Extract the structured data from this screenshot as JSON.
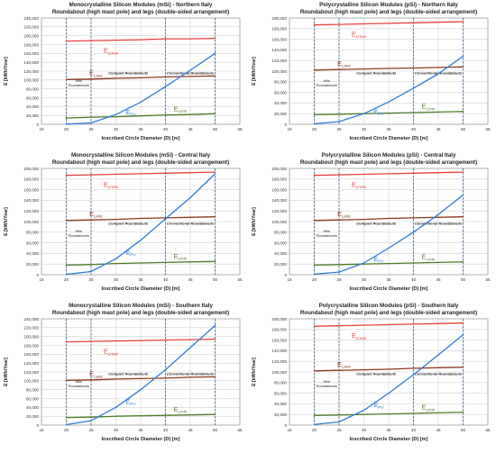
{
  "figure": {
    "common": {
      "xlabel": "Inscribed Circle Diameter (D) [m]",
      "ylabel": "E [kWh/Year]",
      "region_labels": {
        "mini": [
          "Mini",
          "Roundabouts"
        ],
        "compact": "Compact Roundabouts",
        "conventional": "Conventional Roundabouts"
      },
      "series_labels": {
        "lmax": {
          "main": "E",
          "sub": "Lmax"
        },
        "lave": {
          "main": "E",
          "sub": "Lave"
        },
        "lmin": {
          "main": "E",
          "sub": "Lmin"
        },
        "pv": {
          "main": "E",
          "sub": "PV"
        }
      },
      "colors": {
        "lmax": "#e8403a",
        "lave": "#8b3a1e",
        "lmin": "#4e7a2a",
        "pv": "#2f7bd6",
        "grid": "#d0d0d0",
        "divider": "#3a5a8a"
      }
    }
  },
  "chart_data": [
    {
      "type": "line",
      "title": [
        "Monocrystalline Silicon Modules (mSi) - Northern Italy",
        "Roundabout (high mast pole) and legs (double-sided arrangement)"
      ],
      "xlabel": "Inscribed Circle Diameter (D) [m]",
      "ylabel": "E [kWh/Year]",
      "xlim": [
        15,
        55
      ],
      "xticks": [
        15,
        20,
        25,
        30,
        35,
        40,
        45,
        50,
        55
      ],
      "ylim": [
        0,
        240000
      ],
      "yticks": [
        "0",
        "20,000",
        "40,000",
        "60,000",
        "80,000",
        "100,000",
        "120,000",
        "140,000",
        "160,000",
        "180,000",
        "200,000",
        "220,000",
        "240,000"
      ],
      "dividers": [
        25,
        40
      ],
      "series": [
        {
          "key": "lmax",
          "x": [
            20,
            25,
            30,
            35,
            40,
            45,
            50
          ],
          "values": [
            188000,
            189000,
            190000,
            191000,
            193000,
            193000,
            194000
          ]
        },
        {
          "key": "lave",
          "x": [
            20,
            25,
            30,
            35,
            40,
            45,
            50
          ],
          "values": [
            101000,
            102000,
            104000,
            105000,
            107000,
            108000,
            109000
          ]
        },
        {
          "key": "lmin",
          "x": [
            20,
            25,
            30,
            35,
            40,
            45,
            50
          ],
          "values": [
            14000,
            16000,
            17000,
            19000,
            21000,
            22000,
            24000
          ]
        },
        {
          "key": "pv",
          "x": [
            20,
            25,
            30,
            35,
            40,
            45,
            50
          ],
          "values": [
            500,
            3000,
            22000,
            50000,
            85000,
            122000,
            160000
          ]
        }
      ]
    },
    {
      "type": "line",
      "title": [
        "Polycrystalline Silicon Modules (pSi) - Northern Italy",
        "Roundabout (high mast pole) and legs (double-sided arrangement)"
      ],
      "xlabel": "Inscribed Circle Diameter (D) [m]",
      "ylabel": "E [kWh/Year]",
      "xlim": [
        15,
        55
      ],
      "xticks": [
        15,
        20,
        25,
        30,
        35,
        40,
        45,
        50,
        55
      ],
      "ylim": [
        0,
        200000
      ],
      "yticks": [
        "0",
        "20,000",
        "40,000",
        "60,000",
        "80,000",
        "100,000",
        "120,000",
        "140,000",
        "160,000",
        "180,000",
        "200,000"
      ],
      "dividers": [
        25,
        40
      ],
      "series": [
        {
          "key": "lmax",
          "x": [
            20,
            25,
            30,
            35,
            40,
            45,
            50
          ],
          "values": [
            187000,
            188000,
            189000,
            190000,
            191000,
            192000,
            193000
          ]
        },
        {
          "key": "lave",
          "x": [
            20,
            25,
            30,
            35,
            40,
            45,
            50
          ],
          "values": [
            102000,
            103000,
            104000,
            105000,
            106000,
            107000,
            108000
          ]
        },
        {
          "key": "lmin",
          "x": [
            20,
            25,
            30,
            35,
            40,
            45,
            50
          ],
          "values": [
            18000,
            19000,
            20000,
            21000,
            22000,
            23000,
            24000
          ]
        },
        {
          "key": "pv",
          "x": [
            20,
            25,
            30,
            35,
            40,
            45,
            50
          ],
          "values": [
            1000,
            5000,
            20000,
            42000,
            68000,
            95000,
            128000
          ]
        }
      ]
    },
    {
      "type": "line",
      "title": [
        "Monocrystalline Silicon Modules (mSi) - Central Italy",
        "Roundabout (high mast pole) and legs (double-sided arrangement)"
      ],
      "xlabel": "Inscribed Circle Diameter (D) [m]",
      "ylabel": "E [kWh/Year]",
      "xlim": [
        15,
        55
      ],
      "xticks": [
        15,
        20,
        25,
        30,
        35,
        40,
        45,
        50,
        55
      ],
      "ylim": [
        0,
        200000
      ],
      "yticks": [
        "0",
        "20,000",
        "40,000",
        "60,000",
        "80,000",
        "100,000",
        "120,000",
        "140,000",
        "160,000",
        "180,000",
        "200,000"
      ],
      "dividers": [
        25,
        40
      ],
      "series": [
        {
          "key": "lmax",
          "x": [
            20,
            25,
            30,
            35,
            40,
            45,
            50
          ],
          "values": [
            187000,
            188000,
            189000,
            190000,
            191000,
            192000,
            193000
          ]
        },
        {
          "key": "lave",
          "x": [
            20,
            25,
            30,
            35,
            40,
            45,
            50
          ],
          "values": [
            102000,
            103000,
            104000,
            106000,
            107000,
            108000,
            109000
          ]
        },
        {
          "key": "lmin",
          "x": [
            20,
            25,
            30,
            35,
            40,
            45,
            50
          ],
          "values": [
            18000,
            19000,
            21000,
            22000,
            23000,
            24000,
            25000
          ]
        },
        {
          "key": "pv",
          "x": [
            20,
            25,
            30,
            35,
            40,
            45,
            50
          ],
          "values": [
            500,
            6000,
            30000,
            65000,
            105000,
            145000,
            190000
          ]
        }
      ]
    },
    {
      "type": "line",
      "title": [
        "Polycrystalline Silicon Modules (pSi) - Central Italy",
        "Roundabout (high mast pole) and legs (double-sided arrangement)"
      ],
      "xlabel": "Inscribed Circle Diameter (D) [m]",
      "ylabel": "E [kWh/Year]",
      "xlim": [
        15,
        55
      ],
      "xticks": [
        15,
        20,
        25,
        30,
        35,
        40,
        45,
        50,
        55
      ],
      "ylim": [
        0,
        200000
      ],
      "yticks": [
        "0",
        "20,000",
        "40,000",
        "60,000",
        "80,000",
        "100,000",
        "120,000",
        "140,000",
        "160,000",
        "180,000",
        "200,000"
      ],
      "dividers": [
        25,
        40
      ],
      "series": [
        {
          "key": "lmax",
          "x": [
            20,
            25,
            30,
            35,
            40,
            45,
            50
          ],
          "values": [
            187000,
            188000,
            189000,
            190000,
            191000,
            192000,
            193000
          ]
        },
        {
          "key": "lave",
          "x": [
            20,
            25,
            30,
            35,
            40,
            45,
            50
          ],
          "values": [
            102000,
            103000,
            104000,
            106000,
            107000,
            108000,
            109000
          ]
        },
        {
          "key": "lmin",
          "x": [
            20,
            25,
            30,
            35,
            40,
            45,
            50
          ],
          "values": [
            18000,
            19000,
            20000,
            21000,
            22000,
            23000,
            24000
          ]
        },
        {
          "key": "pv",
          "x": [
            20,
            25,
            30,
            35,
            40,
            45,
            50
          ],
          "values": [
            1000,
            5000,
            22000,
            50000,
            80000,
            113000,
            150000
          ]
        }
      ]
    },
    {
      "type": "line",
      "title": [
        "Monocrystalline Silicon Modules (mSi) - Southern Italy",
        "Roundabout (high mast pole) and legs (double-sided arrangement)"
      ],
      "xlabel": "Inscribed Circle Diameter (D) [m]",
      "ylabel": "E [kWh/Year]",
      "xlim": [
        15,
        55
      ],
      "xticks": [
        15,
        20,
        25,
        30,
        35,
        40,
        45,
        50,
        55
      ],
      "ylim": [
        0,
        240000
      ],
      "yticks": [
        "0",
        "20,000",
        "40,000",
        "60,000",
        "80,000",
        "100,000",
        "120,000",
        "140,000",
        "160,000",
        "180,000",
        "200,000",
        "220,000",
        "240,000"
      ],
      "dividers": [
        25,
        40
      ],
      "series": [
        {
          "key": "lmax",
          "x": [
            20,
            25,
            30,
            35,
            40,
            45,
            50
          ],
          "values": [
            188000,
            189000,
            190000,
            191000,
            192000,
            193000,
            194000
          ]
        },
        {
          "key": "lave",
          "x": [
            20,
            25,
            30,
            35,
            40,
            45,
            50
          ],
          "values": [
            101000,
            102000,
            104000,
            105000,
            106000,
            108000,
            109000
          ]
        },
        {
          "key": "lmin",
          "x": [
            20,
            25,
            30,
            35,
            40,
            45,
            50
          ],
          "values": [
            17000,
            18000,
            20000,
            21000,
            22000,
            23000,
            24000
          ]
        },
        {
          "key": "pv",
          "x": [
            20,
            25,
            30,
            35,
            40,
            45,
            50
          ],
          "values": [
            1000,
            10000,
            40000,
            80000,
            125000,
            175000,
            225000
          ]
        }
      ]
    },
    {
      "type": "line",
      "title": [
        "Polycrystalline Silicon Modules (pSi) - Southern Italy",
        "Roundabout (high mast pole) and legs (double-sided arrangement)"
      ],
      "xlabel": "Inscribed Circle Diameter (D) [m]",
      "ylabel": "E [kWh/Year]",
      "xlim": [
        15,
        55
      ],
      "xticks": [
        15,
        20,
        25,
        30,
        35,
        40,
        45,
        50,
        55
      ],
      "ylim": [
        0,
        200000
      ],
      "yticks": [
        "0",
        "20,000",
        "40,000",
        "60,000",
        "80,000",
        "100,000",
        "120,000",
        "140,000",
        "160,000",
        "180,000",
        "200,000"
      ],
      "dividers": [
        25,
        40
      ],
      "series": [
        {
          "key": "lmax",
          "x": [
            20,
            25,
            30,
            35,
            40,
            45,
            50
          ],
          "values": [
            186000,
            187000,
            188000,
            189000,
            190000,
            191000,
            192000
          ]
        },
        {
          "key": "lave",
          "x": [
            20,
            25,
            30,
            35,
            40,
            45,
            50
          ],
          "values": [
            102000,
            103000,
            104000,
            105000,
            107000,
            108000,
            109000
          ]
        },
        {
          "key": "lmin",
          "x": [
            20,
            25,
            30,
            35,
            40,
            45,
            50
          ],
          "values": [
            18000,
            19000,
            20000,
            21000,
            22000,
            23000,
            24000
          ]
        },
        {
          "key": "pv",
          "x": [
            20,
            25,
            30,
            35,
            40,
            45,
            50
          ],
          "values": [
            1000,
            6000,
            28000,
            60000,
            95000,
            132000,
            170000
          ]
        }
      ]
    }
  ]
}
